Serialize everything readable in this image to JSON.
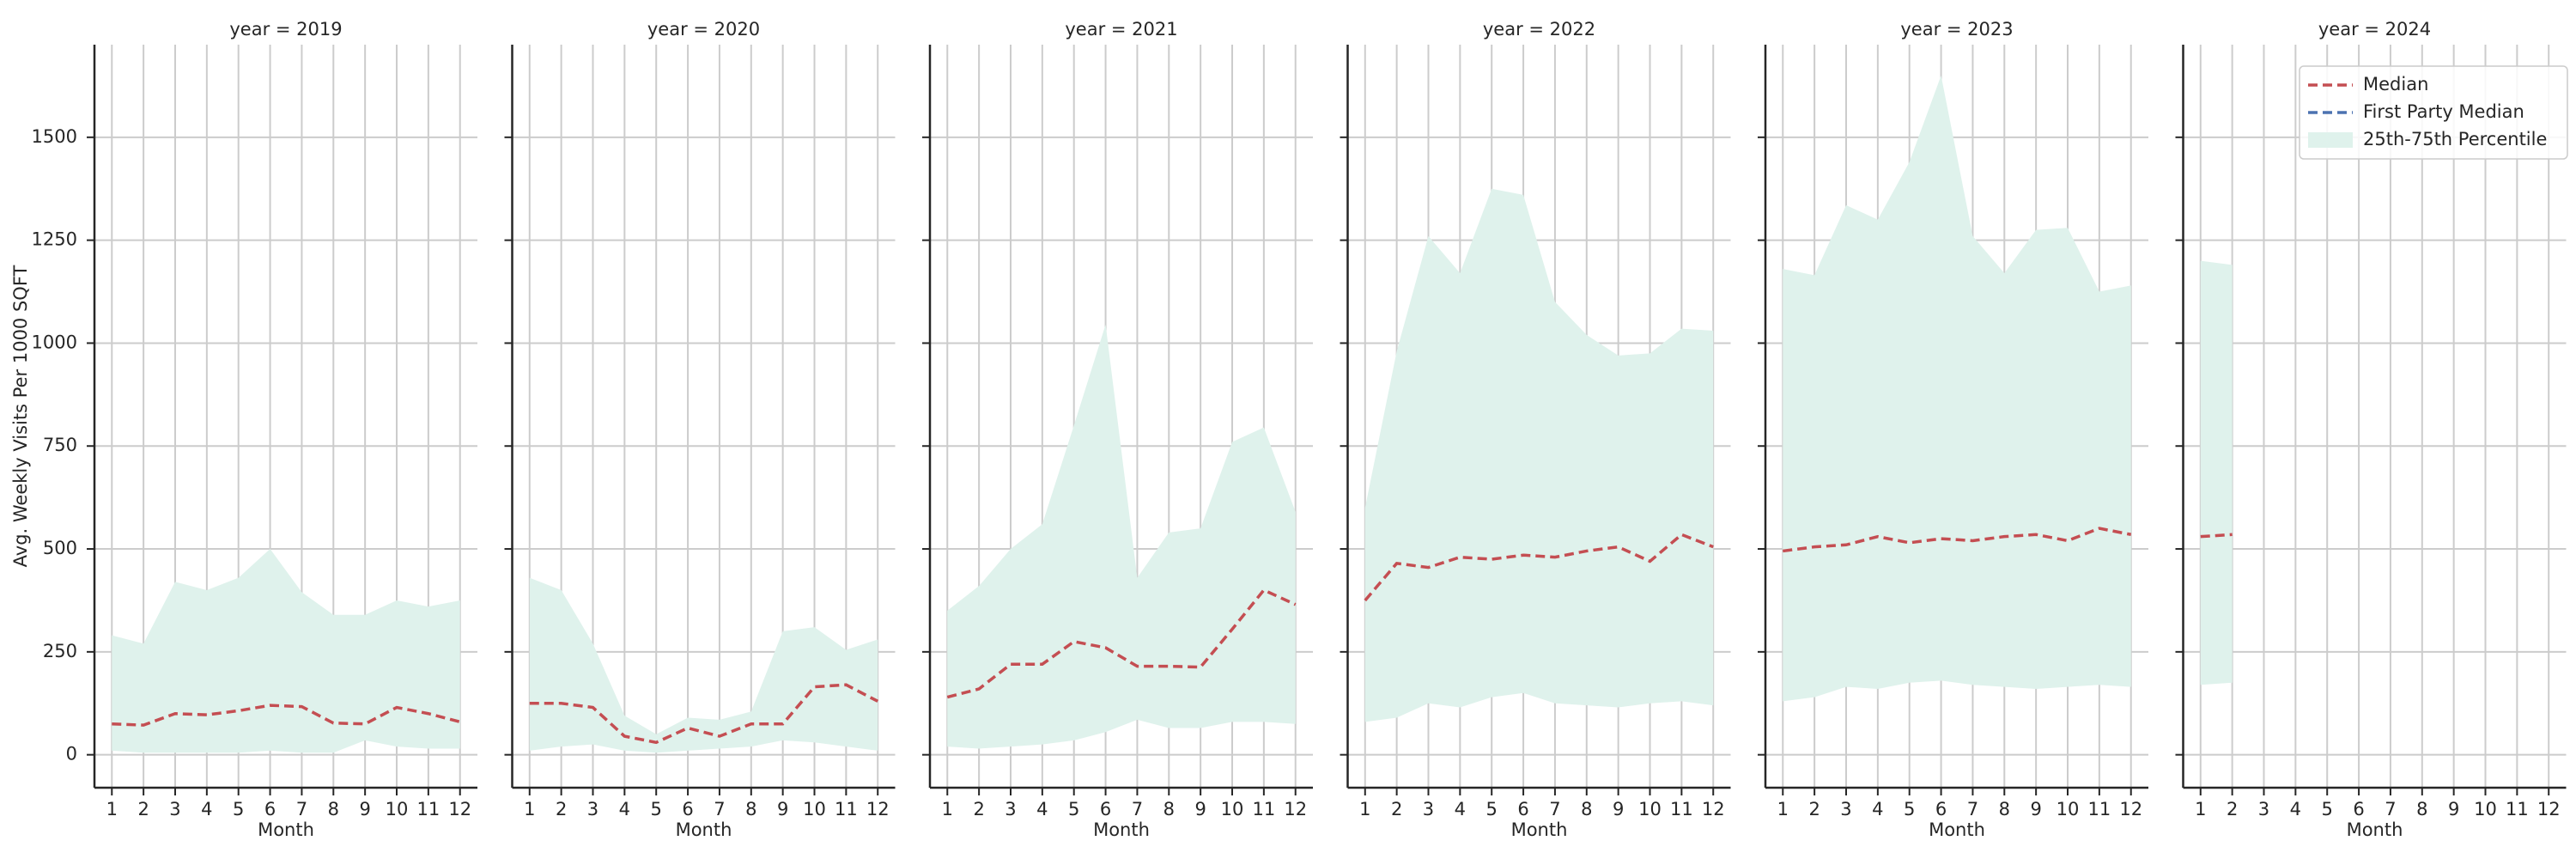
{
  "chart_data": [
    {
      "type": "line",
      "title": "year = 2019",
      "xlabel": "Month",
      "ylabel": "Avg. Weekly Visits Per 1000 SQFT",
      "x": [
        1,
        2,
        3,
        4,
        5,
        6,
        7,
        8,
        9,
        10,
        11,
        12
      ],
      "xticks": [
        1,
        2,
        3,
        4,
        5,
        6,
        7,
        8,
        9,
        10,
        11,
        12
      ],
      "xlim": [
        0.45,
        12.55
      ],
      "ylim": [
        -80,
        1725
      ],
      "yticks": [
        0,
        250,
        500,
        750,
        1000,
        1250,
        1500
      ],
      "grid": true,
      "series": [
        {
          "color": "#c44e52",
          "values": [
            75,
            72,
            100,
            97,
            107,
            120,
            117,
            77,
            75,
            115,
            100,
            80
          ]
        }
      ],
      "band": {
        "color": "#dff2ec",
        "lower": [
          10,
          5,
          5,
          5,
          5,
          10,
          5,
          5,
          35,
          20,
          15,
          15
        ],
        "upper": [
          290,
          270,
          420,
          400,
          430,
          500,
          395,
          340,
          340,
          375,
          360,
          375
        ]
      }
    },
    {
      "type": "line",
      "title": "year = 2020",
      "xlabel": "Month",
      "x": [
        1,
        2,
        3,
        4,
        5,
        6,
        7,
        8,
        9,
        10,
        11,
        12
      ],
      "xticks": [
        1,
        2,
        3,
        4,
        5,
        6,
        7,
        8,
        9,
        10,
        11,
        12
      ],
      "xlim": [
        0.45,
        12.55
      ],
      "ylim": [
        -80,
        1725
      ],
      "yticks": [
        0,
        250,
        500,
        750,
        1000,
        1250,
        1500
      ],
      "grid": true,
      "series": [
        {
          "color": "#c44e52",
          "values": [
            125,
            125,
            115,
            45,
            30,
            65,
            45,
            75,
            75,
            165,
            170,
            130
          ]
        }
      ],
      "band": {
        "color": "#dff2ec",
        "lower": [
          10,
          20,
          25,
          10,
          5,
          10,
          15,
          20,
          35,
          30,
          20,
          10
        ],
        "upper": [
          430,
          400,
          270,
          95,
          50,
          90,
          85,
          105,
          300,
          310,
          255,
          280
        ]
      }
    },
    {
      "type": "line",
      "title": "year = 2021",
      "xlabel": "Month",
      "x": [
        1,
        2,
        3,
        4,
        5,
        6,
        7,
        8,
        9,
        10,
        11,
        12
      ],
      "xticks": [
        1,
        2,
        3,
        4,
        5,
        6,
        7,
        8,
        9,
        10,
        11,
        12
      ],
      "xlim": [
        0.45,
        12.55
      ],
      "ylim": [
        -80,
        1725
      ],
      "yticks": [
        0,
        250,
        500,
        750,
        1000,
        1250,
        1500
      ],
      "grid": true,
      "series": [
        {
          "color": "#c44e52",
          "values": [
            140,
            160,
            220,
            220,
            275,
            260,
            215,
            215,
            213,
            305,
            400,
            365
          ]
        }
      ],
      "band": {
        "color": "#dff2ec",
        "lower": [
          20,
          15,
          20,
          25,
          35,
          55,
          85,
          65,
          65,
          80,
          80,
          75
        ],
        "upper": [
          350,
          410,
          500,
          560,
          800,
          1045,
          430,
          540,
          550,
          760,
          795,
          590
        ]
      }
    },
    {
      "type": "line",
      "title": "year = 2022",
      "xlabel": "Month",
      "x": [
        1,
        2,
        3,
        4,
        5,
        6,
        7,
        8,
        9,
        10,
        11,
        12
      ],
      "xticks": [
        1,
        2,
        3,
        4,
        5,
        6,
        7,
        8,
        9,
        10,
        11,
        12
      ],
      "xlim": [
        0.45,
        12.55
      ],
      "ylim": [
        -80,
        1725
      ],
      "yticks": [
        0,
        250,
        500,
        750,
        1000,
        1250,
        1500
      ],
      "grid": true,
      "series": [
        {
          "color": "#c44e52",
          "values": [
            375,
            465,
            455,
            480,
            475,
            485,
            480,
            495,
            505,
            470,
            535,
            505
          ]
        }
      ],
      "band": {
        "color": "#dff2ec",
        "lower": [
          80,
          90,
          125,
          115,
          140,
          150,
          125,
          120,
          115,
          125,
          130,
          120
        ],
        "upper": [
          600,
          980,
          1260,
          1170,
          1375,
          1360,
          1100,
          1020,
          970,
          975,
          1035,
          1030
        ]
      }
    },
    {
      "type": "line",
      "title": "year = 2023",
      "xlabel": "Month",
      "x": [
        1,
        2,
        3,
        4,
        5,
        6,
        7,
        8,
        9,
        10,
        11,
        12
      ],
      "xticks": [
        1,
        2,
        3,
        4,
        5,
        6,
        7,
        8,
        9,
        10,
        11,
        12
      ],
      "xlim": [
        0.45,
        12.55
      ],
      "ylim": [
        -80,
        1725
      ],
      "yticks": [
        0,
        250,
        500,
        750,
        1000,
        1250,
        1500
      ],
      "grid": true,
      "series": [
        {
          "color": "#c44e52",
          "values": [
            495,
            505,
            510,
            530,
            515,
            525,
            520,
            530,
            535,
            520,
            550,
            535
          ]
        }
      ],
      "band": {
        "color": "#dff2ec",
        "lower": [
          130,
          140,
          165,
          160,
          175,
          180,
          170,
          165,
          160,
          165,
          170,
          165
        ],
        "upper": [
          1180,
          1165,
          1335,
          1300,
          1440,
          1650,
          1260,
          1170,
          1275,
          1280,
          1125,
          1140
        ]
      }
    },
    {
      "type": "line",
      "title": "year = 2024",
      "xlabel": "Month",
      "legend": "upper right",
      "x": [
        1,
        2,
        3,
        4,
        5,
        6,
        7,
        8,
        9,
        10,
        11,
        12
      ],
      "xticks": [
        1,
        2,
        3,
        4,
        5,
        6,
        7,
        8,
        9,
        10,
        11,
        12
      ],
      "xlim": [
        0.45,
        12.55
      ],
      "ylim": [
        -80,
        1725
      ],
      "yticks": [
        0,
        250,
        500,
        750,
        1000,
        1250,
        1500
      ],
      "grid": true,
      "series": [
        {
          "name": "Median",
          "color": "#c44e52",
          "values": [
            530,
            535,
            null,
            null,
            null,
            null,
            null,
            null,
            null,
            null,
            null,
            null
          ]
        },
        {
          "name": "First Party Median",
          "color": "#4c72b0",
          "values": [
            null,
            null,
            null,
            null,
            null,
            null,
            null,
            null,
            null,
            null,
            null,
            null
          ]
        }
      ],
      "band": {
        "name": "25th-75th Percentile",
        "color": "#dff2ec",
        "lower": [
          170,
          175,
          null,
          null,
          null,
          null,
          null,
          null,
          null,
          null,
          null,
          null
        ],
        "upper": [
          1200,
          1190,
          null,
          null,
          null,
          null,
          null,
          null,
          null,
          null,
          null,
          null
        ]
      }
    }
  ]
}
